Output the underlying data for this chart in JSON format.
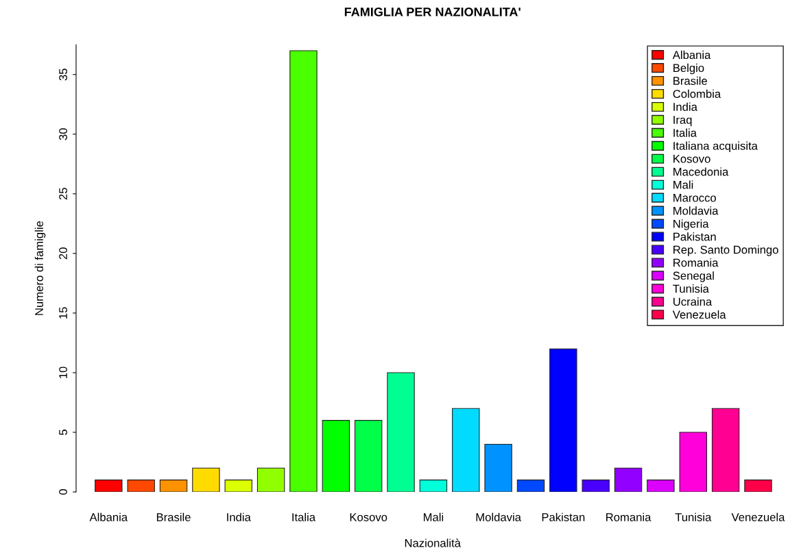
{
  "chart_data": {
    "type": "bar",
    "title": "FAMIGLIA PER NAZIONALITA'",
    "xlabel": "Nazionalità",
    "ylabel": "Numero di famiglie",
    "categories": [
      "Albania",
      null,
      "Brasile",
      null,
      "India",
      null,
      "Italia",
      null,
      "Kosovo",
      null,
      "Mali",
      null,
      "Moldavia",
      null,
      "Pakistan",
      null,
      "Romania",
      null,
      "Tunisia",
      null,
      "Venezuela"
    ],
    "series": [
      {
        "name": "Albania",
        "color": "#ff0000",
        "values": [
          1,
          null,
          null,
          null,
          null,
          null,
          null,
          null,
          null,
          null,
          null,
          null,
          null,
          null,
          null,
          null,
          null,
          null,
          null,
          null,
          null
        ]
      },
      {
        "name": "Belgio",
        "color": "#ff4900",
        "values": [
          null,
          1,
          null,
          null,
          null,
          null,
          null,
          null,
          null,
          null,
          null,
          null,
          null,
          null,
          null,
          null,
          null,
          null,
          null,
          null,
          null
        ]
      },
      {
        "name": "Brasile",
        "color": "#ff9200",
        "values": [
          null,
          null,
          1,
          null,
          null,
          null,
          null,
          null,
          null,
          null,
          null,
          null,
          null,
          null,
          null,
          null,
          null,
          null,
          null,
          null,
          null
        ]
      },
      {
        "name": "Colombia",
        "color": "#ffdb00",
        "values": [
          null,
          null,
          null,
          2,
          null,
          null,
          null,
          null,
          null,
          null,
          null,
          null,
          null,
          null,
          null,
          null,
          null,
          null,
          null,
          null,
          null
        ]
      },
      {
        "name": "India",
        "color": "#dbff00",
        "values": [
          null,
          null,
          null,
          null,
          1,
          null,
          null,
          null,
          null,
          null,
          null,
          null,
          null,
          null,
          null,
          null,
          null,
          null,
          null,
          null,
          null
        ]
      },
      {
        "name": "Iraq",
        "color": "#92ff00",
        "values": [
          null,
          null,
          null,
          null,
          null,
          2,
          null,
          null,
          null,
          null,
          null,
          null,
          null,
          null,
          null,
          null,
          null,
          null,
          null,
          null,
          null
        ]
      },
      {
        "name": "Italia",
        "color": "#49ff00",
        "values": [
          null,
          null,
          null,
          null,
          null,
          null,
          37,
          null,
          null,
          null,
          null,
          null,
          null,
          null,
          null,
          null,
          null,
          null,
          null,
          null,
          null
        ]
      },
      {
        "name": "Italiana acquisita",
        "color": "#00ff00",
        "values": [
          null,
          null,
          null,
          null,
          null,
          null,
          null,
          6,
          null,
          null,
          null,
          null,
          null,
          null,
          null,
          null,
          null,
          null,
          null,
          null,
          null
        ]
      },
      {
        "name": "Kosovo",
        "color": "#00ff49",
        "values": [
          null,
          null,
          null,
          null,
          null,
          null,
          null,
          null,
          6,
          null,
          null,
          null,
          null,
          null,
          null,
          null,
          null,
          null,
          null,
          null,
          null
        ]
      },
      {
        "name": "Macedonia",
        "color": "#00ff92",
        "values": [
          null,
          null,
          null,
          null,
          null,
          null,
          null,
          null,
          null,
          10,
          null,
          null,
          null,
          null,
          null,
          null,
          null,
          null,
          null,
          null,
          null
        ]
      },
      {
        "name": "Mali",
        "color": "#00ffdb",
        "values": [
          null,
          null,
          null,
          null,
          null,
          null,
          null,
          null,
          null,
          null,
          1,
          null,
          null,
          null,
          null,
          null,
          null,
          null,
          null,
          null,
          null
        ]
      },
      {
        "name": "Marocco",
        "color": "#00dbff",
        "values": [
          null,
          null,
          null,
          null,
          null,
          null,
          null,
          null,
          null,
          null,
          null,
          7,
          null,
          null,
          null,
          null,
          null,
          null,
          null,
          null,
          null
        ]
      },
      {
        "name": "Moldavia",
        "color": "#0092ff",
        "values": [
          null,
          null,
          null,
          null,
          null,
          null,
          null,
          null,
          null,
          null,
          null,
          null,
          4,
          null,
          null,
          null,
          null,
          null,
          null,
          null,
          null
        ]
      },
      {
        "name": "Nigeria",
        "color": "#0049ff",
        "values": [
          null,
          null,
          null,
          null,
          null,
          null,
          null,
          null,
          null,
          null,
          null,
          null,
          null,
          1,
          null,
          null,
          null,
          null,
          null,
          null,
          null
        ]
      },
      {
        "name": "Pakistan",
        "color": "#0000ff",
        "values": [
          null,
          null,
          null,
          null,
          null,
          null,
          null,
          null,
          null,
          null,
          null,
          null,
          null,
          null,
          12,
          null,
          null,
          null,
          null,
          null,
          null
        ]
      },
      {
        "name": "Rep. Santo Domingo",
        "color": "#4900ff",
        "values": [
          null,
          null,
          null,
          null,
          null,
          null,
          null,
          null,
          null,
          null,
          null,
          null,
          null,
          null,
          null,
          1,
          null,
          null,
          null,
          null,
          null
        ]
      },
      {
        "name": "Romania",
        "color": "#9200ff",
        "values": [
          null,
          null,
          null,
          null,
          null,
          null,
          null,
          null,
          null,
          null,
          null,
          null,
          null,
          null,
          null,
          null,
          2,
          null,
          null,
          null,
          null
        ]
      },
      {
        "name": "Senegal",
        "color": "#db00ff",
        "values": [
          null,
          null,
          null,
          null,
          null,
          null,
          null,
          null,
          null,
          null,
          null,
          null,
          null,
          null,
          null,
          null,
          null,
          1,
          null,
          null,
          null
        ]
      },
      {
        "name": "Tunisia",
        "color": "#ff00db",
        "values": [
          null,
          null,
          null,
          null,
          null,
          null,
          null,
          null,
          null,
          null,
          null,
          null,
          null,
          null,
          null,
          null,
          null,
          null,
          5,
          null,
          null
        ]
      },
      {
        "name": "Ucraina",
        "color": "#ff0092",
        "values": [
          null,
          null,
          null,
          null,
          null,
          null,
          null,
          null,
          null,
          null,
          null,
          null,
          null,
          null,
          null,
          null,
          null,
          null,
          null,
          7,
          null
        ]
      },
      {
        "name": "Venezuela",
        "color": "#ff0049",
        "values": [
          null,
          null,
          null,
          null,
          null,
          null,
          null,
          null,
          null,
          null,
          null,
          null,
          null,
          null,
          null,
          null,
          null,
          null,
          null,
          null,
          1
        ]
      }
    ],
    "ylim": [
      0,
      37.5
    ],
    "yticks": [
      0,
      5,
      10,
      15,
      20,
      25,
      30,
      35
    ],
    "grid": false,
    "legend": "top right"
  }
}
